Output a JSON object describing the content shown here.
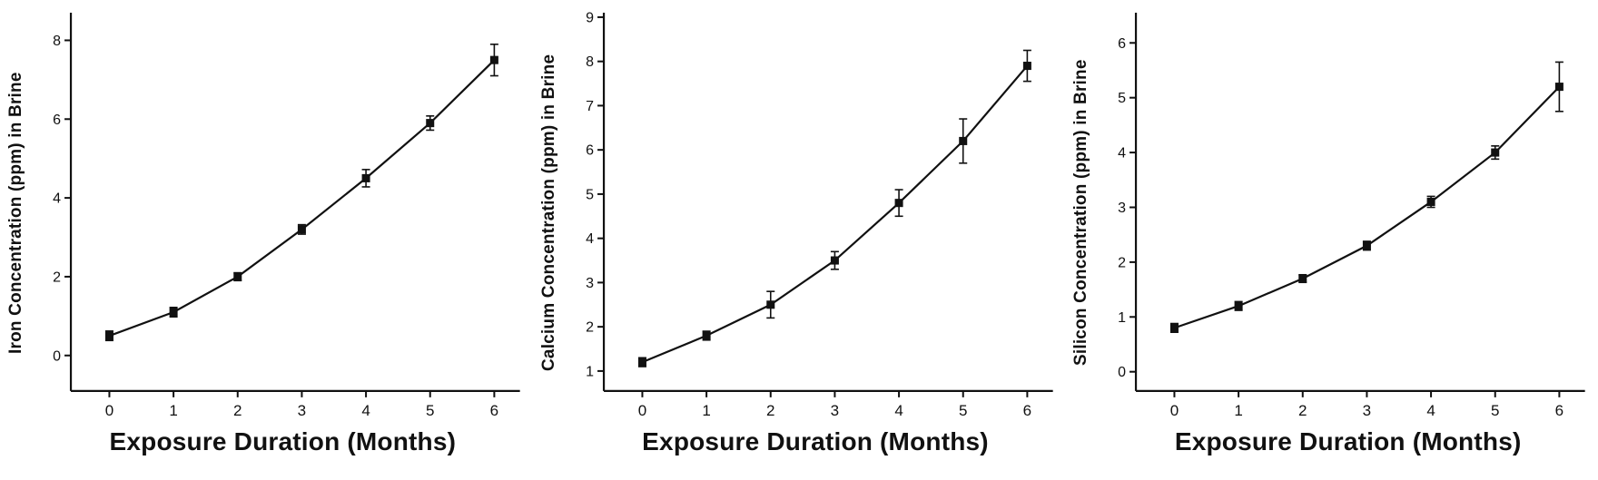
{
  "figure": {
    "background": "#ffffff",
    "axis_color": "#111111"
  },
  "chart_data": [
    {
      "type": "line",
      "id": "iron",
      "xlabel": "Exposure Duration (Months)",
      "ylabel": "Iron Concentration (ppm) in Brine",
      "x": [
        0,
        1,
        2,
        3,
        4,
        5,
        6
      ],
      "values": [
        0.5,
        1.1,
        2.0,
        3.2,
        4.5,
        5.9,
        7.5
      ],
      "errors": [
        0.12,
        0.12,
        0.1,
        0.12,
        0.22,
        0.18,
        0.4
      ],
      "xticks": [
        0,
        1,
        2,
        3,
        4,
        5,
        6
      ],
      "yticks": [
        0,
        2,
        4,
        6,
        8
      ],
      "xlim": [
        -0.6,
        6.4
      ],
      "ylim": [
        -0.9,
        8.7
      ],
      "marker": "filled-square",
      "error_bars": true,
      "grid": false,
      "line_color": "#111111"
    },
    {
      "type": "line",
      "id": "calcium",
      "xlabel": "Exposure Duration (Months)",
      "ylabel": "Calcium Concentration (ppm) in Brine",
      "x": [
        0,
        1,
        2,
        3,
        4,
        5,
        6
      ],
      "values": [
        1.2,
        1.8,
        2.5,
        3.5,
        4.8,
        6.2,
        7.9
      ],
      "errors": [
        0.1,
        0.1,
        0.3,
        0.2,
        0.3,
        0.5,
        0.35
      ],
      "xticks": [
        0,
        1,
        2,
        3,
        4,
        5,
        6
      ],
      "yticks": [
        1,
        2,
        3,
        4,
        5,
        6,
        7,
        8,
        9
      ],
      "xlim": [
        -0.6,
        6.4
      ],
      "ylim": [
        0.55,
        9.1
      ],
      "marker": "filled-square",
      "error_bars": true,
      "grid": false,
      "line_color": "#111111"
    },
    {
      "type": "line",
      "id": "silicon",
      "xlabel": "Exposure Duration (Months)",
      "ylabel": "Silicon Concentration (ppm) in Brine",
      "x": [
        0,
        1,
        2,
        3,
        4,
        5,
        6
      ],
      "values": [
        0.8,
        1.2,
        1.7,
        2.3,
        3.1,
        4.0,
        5.2
      ],
      "errors": [
        0.08,
        0.08,
        0.07,
        0.08,
        0.1,
        0.12,
        0.45
      ],
      "xticks": [
        0,
        1,
        2,
        3,
        4,
        5,
        6
      ],
      "yticks": [
        0,
        1,
        2,
        3,
        4,
        5,
        6
      ],
      "xlim": [
        -0.6,
        6.4
      ],
      "ylim": [
        -0.35,
        6.55
      ],
      "marker": "filled-square",
      "error_bars": true,
      "grid": false,
      "line_color": "#111111"
    }
  ]
}
